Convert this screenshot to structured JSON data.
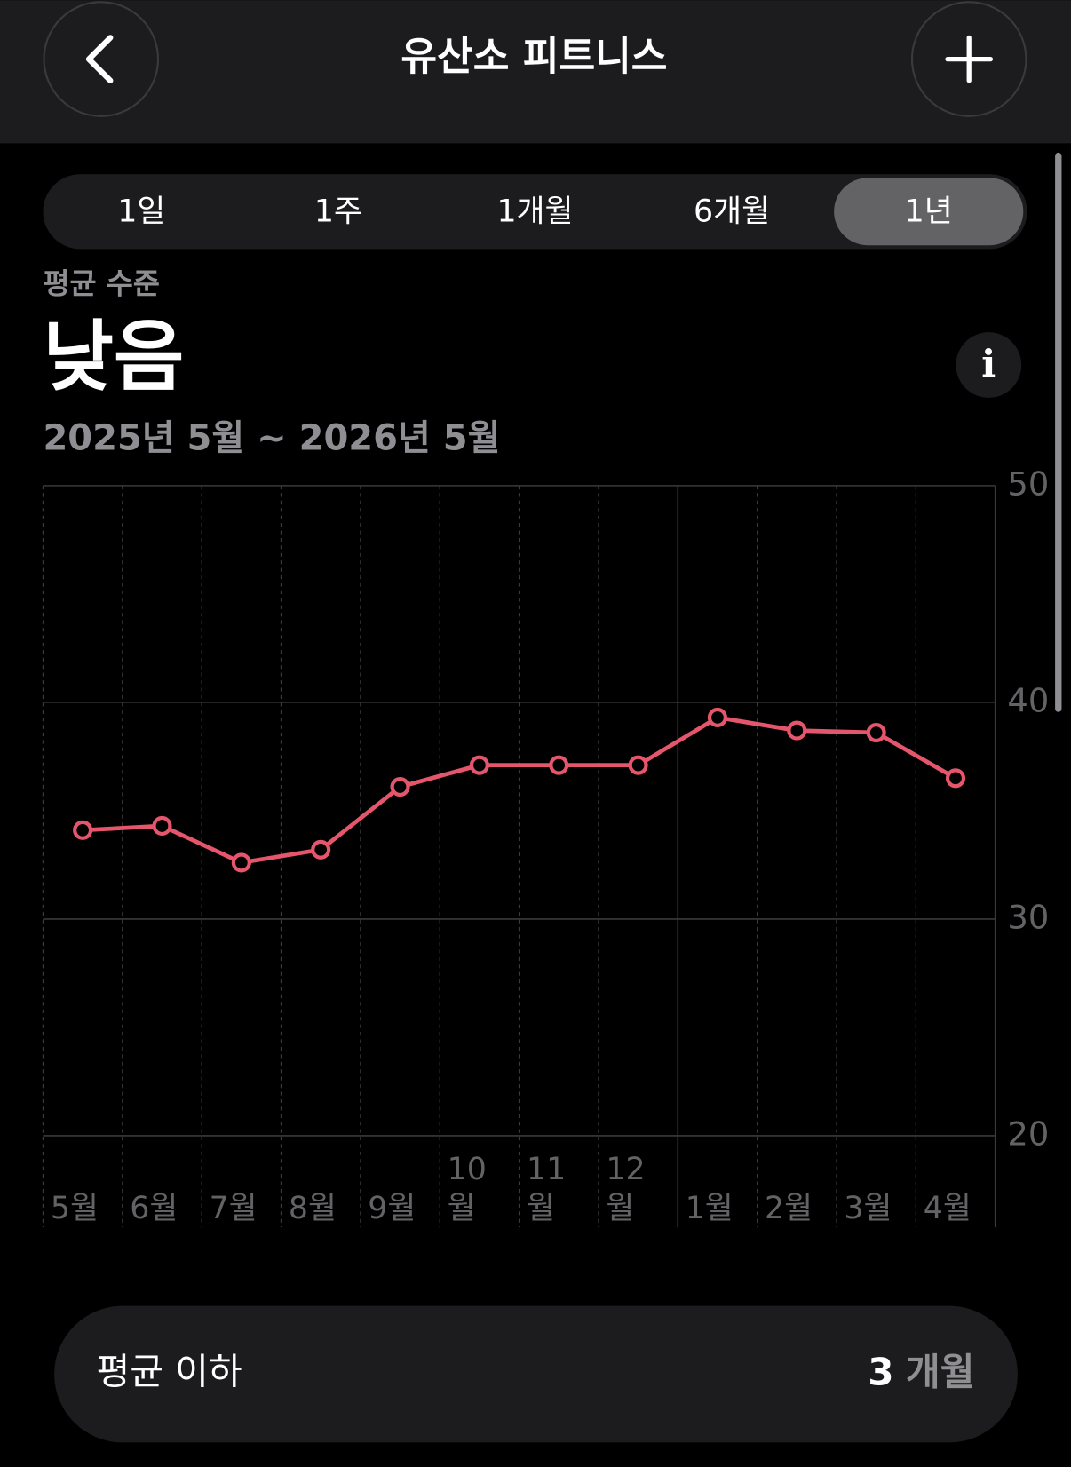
{
  "header": {
    "title": "유산소 피트니스"
  },
  "segments": {
    "options": [
      "1일",
      "1주",
      "1개월",
      "6개월",
      "1년"
    ],
    "selected": 4
  },
  "summary": {
    "caption": "평균 수준",
    "level": "낮음",
    "period": "2025년 5월 ~ 2026년 5월"
  },
  "chart_data": {
    "type": "line",
    "categories": [
      "5월",
      "6월",
      "7월",
      "8월",
      "9월",
      "10월",
      "11월",
      "12월",
      "1월",
      "2월",
      "3월",
      "4월"
    ],
    "values": [
      34.1,
      34.3,
      32.6,
      33.2,
      36.1,
      37.1,
      37.1,
      37.1,
      39.3,
      38.7,
      38.6,
      36.5
    ],
    "color": "#e5566c",
    "ylim": [
      20,
      50
    ],
    "yticks": [
      20,
      30,
      40,
      50
    ],
    "grid": true
  },
  "footer": {
    "label": "평균 이하",
    "value": "3",
    "unit": "개월"
  }
}
